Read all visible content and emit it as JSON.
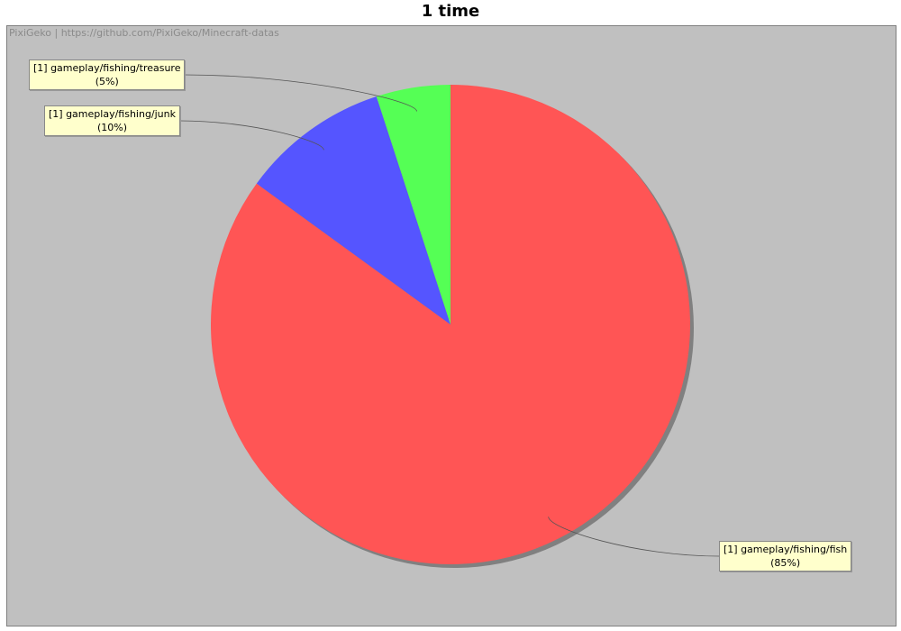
{
  "chart_data": {
    "type": "pie",
    "title": "1 time",
    "watermark": "PixiGeko | https://github.com/PixiGeko/Minecraft-datas",
    "slices": [
      {
        "name": "[1] gameplay/fishing/fish",
        "percent_label": "(85%)",
        "value": 85,
        "color": "#ff5555"
      },
      {
        "name": "[1] gameplay/fishing/junk",
        "percent_label": "(10%)",
        "value": 10,
        "color": "#5555ff"
      },
      {
        "name": "[1] gameplay/fishing/treasure",
        "percent_label": "(5%)",
        "value": 5,
        "color": "#55ff55"
      }
    ]
  }
}
